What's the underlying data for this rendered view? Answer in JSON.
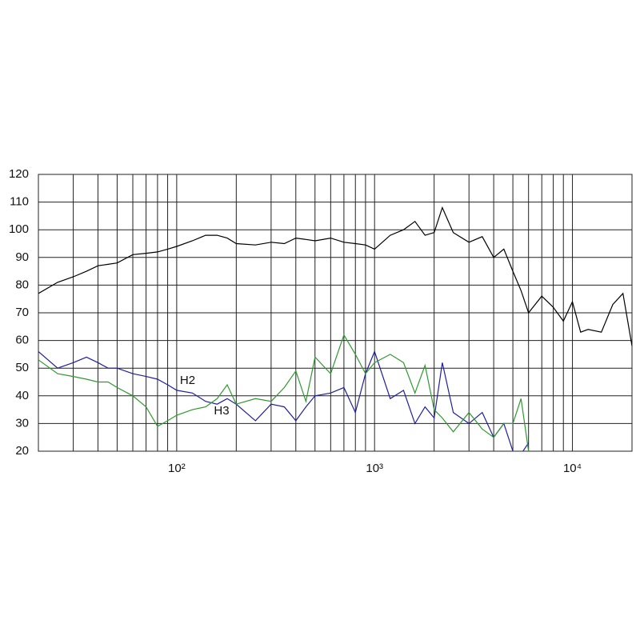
{
  "chart_data": {
    "type": "line",
    "x": [
      20,
      25,
      30,
      35,
      40,
      45,
      50,
      60,
      70,
      80,
      90,
      100,
      120,
      140,
      160,
      180,
      200,
      250,
      300,
      350,
      400,
      450,
      500,
      600,
      700,
      800,
      900,
      1000,
      1200,
      1400,
      1600,
      1800,
      2000,
      2200,
      2500,
      3000,
      3500,
      4000,
      4500,
      5000,
      5500,
      6000,
      7000,
      8000,
      9000,
      10000,
      11000,
      12000,
      14000,
      16000,
      18000,
      20000
    ],
    "series": [
      {
        "color": "#000000",
        "values": [
          77,
          81,
          83,
          85,
          87,
          87.5,
          88,
          91,
          91.5,
          92,
          93,
          94,
          96,
          98,
          98,
          97,
          95,
          94.5,
          95.5,
          95,
          97,
          96.5,
          96,
          97,
          95.5,
          95,
          94.5,
          93,
          98,
          100,
          103,
          98,
          99,
          108,
          99,
          95.5,
          97.5,
          90,
          93,
          85,
          78,
          70,
          76,
          72,
          67,
          74,
          63,
          64,
          63,
          73,
          77,
          58
        ]
      },
      {
        "name": "H2",
        "color": "#1f1f9e",
        "values": [
          56,
          50,
          52,
          54,
          52,
          50,
          50,
          48,
          47,
          46,
          44,
          42,
          41,
          38,
          37,
          39,
          37,
          31,
          37,
          36,
          31,
          36,
          40,
          41,
          43,
          34,
          48,
          56,
          39,
          42,
          30,
          36,
          32,
          52,
          34,
          30,
          34,
          25,
          30,
          20,
          19,
          23,
          null,
          null,
          null,
          null,
          null,
          null,
          null,
          null,
          null,
          null
        ]
      },
      {
        "name": "H3",
        "color": "#2e9a2e",
        "values": [
          53,
          48,
          47,
          46,
          45,
          45,
          43,
          40,
          36,
          29,
          31,
          33,
          35,
          36,
          39,
          44,
          37,
          39,
          38,
          43,
          49,
          38,
          54,
          48,
          62,
          55,
          48,
          52,
          55,
          52,
          41,
          51,
          35,
          32,
          27,
          34,
          28,
          25,
          30,
          30,
          39,
          20,
          null,
          null,
          null,
          null,
          null,
          null,
          null,
          null,
          null,
          null
        ]
      }
    ],
    "xlim": [
      20,
      20000
    ],
    "log_x": true,
    "xticks": [
      {
        "value": 100,
        "label": "10²"
      },
      {
        "value": 1000,
        "label": "10³"
      },
      {
        "value": 10000,
        "label": "10⁴"
      }
    ],
    "xgrid": [
      30,
      40,
      50,
      60,
      70,
      80,
      90,
      100,
      200,
      300,
      400,
      500,
      600,
      700,
      800,
      900,
      1000,
      2000,
      3000,
      4000,
      5000,
      6000,
      7000,
      8000,
      9000,
      10000
    ],
    "ylim": [
      20,
      120
    ],
    "yticks": [
      20,
      30,
      40,
      50,
      60,
      70,
      80,
      90,
      100,
      110,
      120
    ],
    "grid": true
  }
}
